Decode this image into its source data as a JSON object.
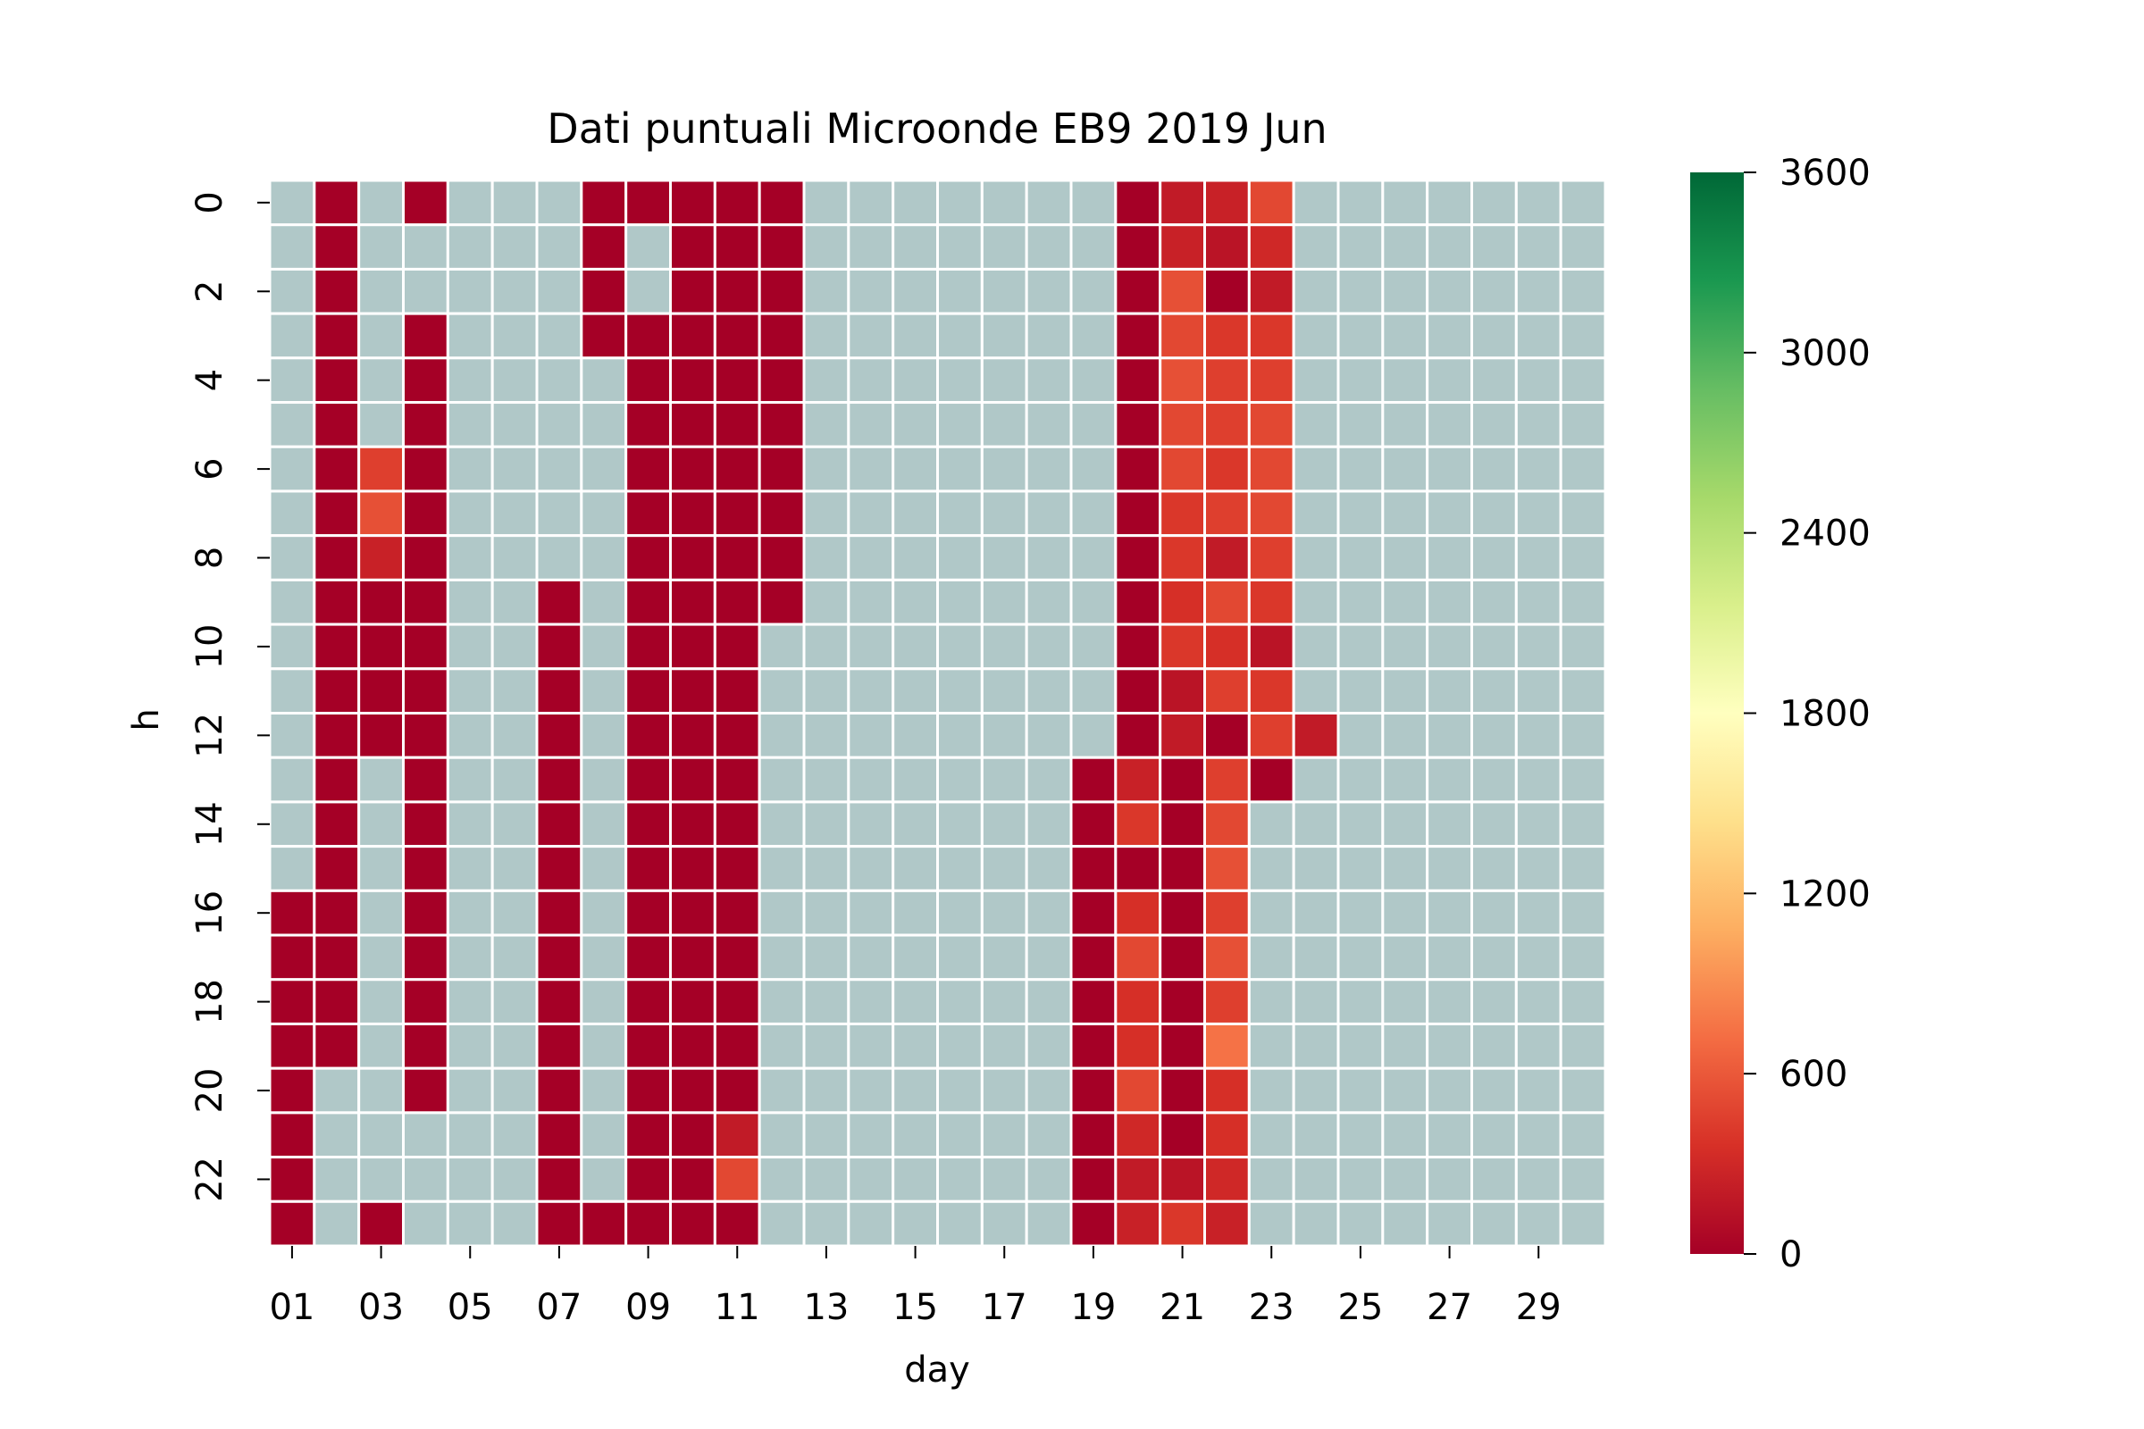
{
  "chart_data": {
    "type": "heatmap",
    "title": "Dati puntuali Microonde EB9 2019 Jun",
    "xlabel": "day",
    "ylabel": "h",
    "x_tick_labels": [
      "01",
      "03",
      "05",
      "07",
      "09",
      "11",
      "13",
      "15",
      "17",
      "19",
      "21",
      "23",
      "25",
      "27",
      "29"
    ],
    "y_tick_labels": [
      "0",
      "2",
      "4",
      "6",
      "8",
      "10",
      "12",
      "14",
      "16",
      "18",
      "20",
      "22"
    ],
    "days": 30,
    "hours": 24,
    "colormap": "RdYlGn",
    "vmin": 0,
    "vmax": 3600,
    "colorbar_ticks": [
      "0",
      "600",
      "1200",
      "1800",
      "2400",
      "3000",
      "3600"
    ],
    "missing_color": "#b0c8c8",
    "grid_line_color": "#ffffff",
    "values": [
      [
        null,
        0,
        null,
        0,
        null,
        null,
        null,
        0,
        0,
        0,
        0,
        0,
        null,
        null,
        null,
        null,
        null,
        null,
        null,
        0,
        200,
        250,
        500,
        null,
        null,
        null,
        null,
        null,
        null,
        null
      ],
      [
        null,
        0,
        null,
        null,
        null,
        null,
        null,
        0,
        null,
        0,
        0,
        0,
        null,
        null,
        null,
        null,
        null,
        null,
        null,
        0,
        250,
        150,
        300,
        null,
        null,
        null,
        null,
        null,
        null,
        null
      ],
      [
        null,
        0,
        null,
        null,
        null,
        null,
        null,
        0,
        null,
        0,
        0,
        0,
        null,
        null,
        null,
        null,
        null,
        null,
        null,
        0,
        550,
        0,
        200,
        null,
        null,
        null,
        null,
        null,
        null,
        null
      ],
      [
        null,
        0,
        null,
        0,
        null,
        null,
        null,
        0,
        0,
        0,
        0,
        0,
        null,
        null,
        null,
        null,
        null,
        null,
        null,
        0,
        500,
        400,
        400,
        null,
        null,
        null,
        null,
        null,
        null,
        null
      ],
      [
        null,
        0,
        null,
        0,
        null,
        null,
        null,
        null,
        0,
        0,
        0,
        0,
        null,
        null,
        null,
        null,
        null,
        null,
        null,
        0,
        550,
        450,
        450,
        null,
        null,
        null,
        null,
        null,
        null,
        null
      ],
      [
        null,
        0,
        null,
        0,
        null,
        null,
        null,
        null,
        0,
        0,
        0,
        0,
        null,
        null,
        null,
        null,
        null,
        null,
        null,
        0,
        500,
        450,
        500,
        null,
        null,
        null,
        null,
        null,
        null,
        null
      ],
      [
        null,
        0,
        450,
        0,
        null,
        null,
        null,
        null,
        0,
        0,
        0,
        0,
        null,
        null,
        null,
        null,
        null,
        null,
        null,
        0,
        500,
        400,
        500,
        null,
        null,
        null,
        null,
        null,
        null,
        null
      ],
      [
        null,
        0,
        550,
        0,
        null,
        null,
        null,
        null,
        0,
        0,
        0,
        0,
        null,
        null,
        null,
        null,
        null,
        null,
        null,
        0,
        400,
        450,
        500,
        null,
        null,
        null,
        null,
        null,
        null,
        null
      ],
      [
        null,
        0,
        250,
        0,
        null,
        null,
        null,
        null,
        0,
        0,
        0,
        0,
        null,
        null,
        null,
        null,
        null,
        null,
        null,
        0,
        400,
        200,
        450,
        null,
        null,
        null,
        null,
        null,
        null,
        null
      ],
      [
        null,
        0,
        0,
        0,
        null,
        null,
        0,
        null,
        0,
        0,
        0,
        0,
        null,
        null,
        null,
        null,
        null,
        null,
        null,
        0,
        350,
        500,
        400,
        null,
        null,
        null,
        null,
        null,
        null,
        null
      ],
      [
        null,
        0,
        0,
        0,
        null,
        null,
        0,
        null,
        0,
        0,
        0,
        null,
        null,
        null,
        null,
        null,
        null,
        null,
        null,
        0,
        400,
        350,
        150,
        null,
        null,
        null,
        null,
        null,
        null,
        null
      ],
      [
        null,
        0,
        0,
        0,
        null,
        null,
        0,
        null,
        0,
        0,
        0,
        null,
        null,
        null,
        null,
        null,
        null,
        null,
        null,
        0,
        150,
        450,
        400,
        null,
        null,
        null,
        null,
        null,
        null,
        null
      ],
      [
        null,
        0,
        0,
        0,
        null,
        null,
        0,
        null,
        0,
        0,
        0,
        null,
        null,
        null,
        null,
        null,
        null,
        null,
        null,
        0,
        200,
        0,
        450,
        200,
        null,
        null,
        null,
        null,
        null,
        null
      ],
      [
        null,
        0,
        null,
        0,
        null,
        null,
        0,
        null,
        0,
        0,
        0,
        null,
        null,
        null,
        null,
        null,
        null,
        null,
        0,
        250,
        0,
        450,
        0,
        null,
        null,
        null,
        null,
        null,
        null,
        null
      ],
      [
        null,
        0,
        null,
        0,
        null,
        null,
        0,
        null,
        0,
        0,
        0,
        null,
        null,
        null,
        null,
        null,
        null,
        null,
        0,
        400,
        0,
        500,
        null,
        null,
        null,
        null,
        null,
        null,
        null,
        null
      ],
      [
        null,
        0,
        null,
        0,
        null,
        null,
        0,
        null,
        0,
        0,
        0,
        null,
        null,
        null,
        null,
        null,
        null,
        null,
        0,
        0,
        0,
        550,
        null,
        null,
        null,
        null,
        null,
        null,
        null,
        null
      ],
      [
        0,
        0,
        null,
        0,
        null,
        null,
        0,
        null,
        0,
        0,
        0,
        null,
        null,
        null,
        null,
        null,
        null,
        null,
        0,
        350,
        0,
        450,
        null,
        null,
        null,
        null,
        null,
        null,
        null,
        null
      ],
      [
        0,
        0,
        null,
        0,
        null,
        null,
        0,
        null,
        0,
        0,
        0,
        null,
        null,
        null,
        null,
        null,
        null,
        null,
        0,
        500,
        0,
        550,
        null,
        null,
        null,
        null,
        null,
        null,
        null,
        null
      ],
      [
        0,
        0,
        null,
        0,
        null,
        null,
        0,
        null,
        0,
        0,
        0,
        null,
        null,
        null,
        null,
        null,
        null,
        null,
        0,
        350,
        0,
        450,
        null,
        null,
        null,
        null,
        null,
        null,
        null,
        null
      ],
      [
        0,
        0,
        null,
        0,
        null,
        null,
        0,
        null,
        0,
        0,
        0,
        null,
        null,
        null,
        null,
        null,
        null,
        null,
        0,
        350,
        0,
        750,
        null,
        null,
        null,
        null,
        null,
        null,
        null,
        null
      ],
      [
        0,
        null,
        null,
        0,
        null,
        null,
        0,
        null,
        0,
        0,
        0,
        null,
        null,
        null,
        null,
        null,
        null,
        null,
        0,
        500,
        0,
        350,
        null,
        null,
        null,
        null,
        null,
        null,
        null,
        null
      ],
      [
        0,
        null,
        null,
        null,
        null,
        null,
        0,
        null,
        0,
        0,
        200,
        null,
        null,
        null,
        null,
        null,
        null,
        null,
        0,
        300,
        0,
        350,
        null,
        null,
        null,
        null,
        null,
        null,
        null,
        null
      ],
      [
        0,
        null,
        null,
        null,
        null,
        null,
        0,
        null,
        0,
        0,
        500,
        null,
        null,
        null,
        null,
        null,
        null,
        null,
        0,
        200,
        150,
        300,
        null,
        null,
        null,
        null,
        null,
        null,
        null,
        null
      ],
      [
        0,
        null,
        0,
        null,
        null,
        null,
        0,
        0,
        0,
        0,
        0,
        null,
        null,
        null,
        null,
        null,
        null,
        null,
        0,
        250,
        400,
        250,
        null,
        null,
        null,
        null,
        null,
        null,
        null,
        null
      ]
    ]
  }
}
